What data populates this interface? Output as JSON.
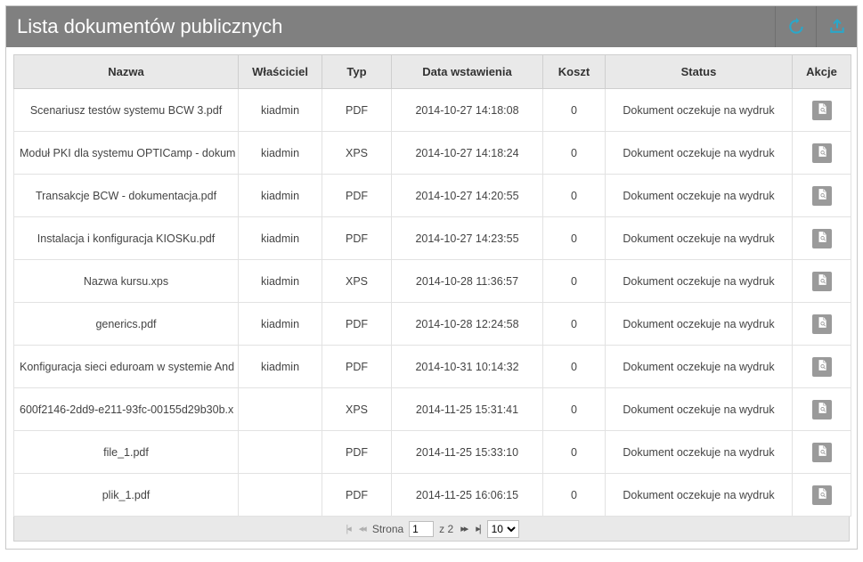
{
  "header": {
    "title": "Lista dokumentów publicznych"
  },
  "columns": {
    "name": "Nazwa",
    "owner": "Właściciel",
    "type": "Typ",
    "date": "Data wstawienia",
    "cost": "Koszt",
    "status": "Status",
    "actions": "Akcje"
  },
  "rows": [
    {
      "name": "Scenariusz testów systemu BCW 3.pdf",
      "owner": "kiadmin",
      "type": "PDF",
      "date": "2014-10-27 14:18:08",
      "cost": "0",
      "status": "Dokument oczekuje na wydruk"
    },
    {
      "name": "Moduł PKI dla systemu OPTICamp - dokum",
      "owner": "kiadmin",
      "type": "XPS",
      "date": "2014-10-27 14:18:24",
      "cost": "0",
      "status": "Dokument oczekuje na wydruk"
    },
    {
      "name": "Transakcje BCW - dokumentacja.pdf",
      "owner": "kiadmin",
      "type": "PDF",
      "date": "2014-10-27 14:20:55",
      "cost": "0",
      "status": "Dokument oczekuje na wydruk"
    },
    {
      "name": "Instalacja i konfiguracja KIOSKu.pdf",
      "owner": "kiadmin",
      "type": "PDF",
      "date": "2014-10-27 14:23:55",
      "cost": "0",
      "status": "Dokument oczekuje na wydruk"
    },
    {
      "name": "Nazwa kursu.xps",
      "owner": "kiadmin",
      "type": "XPS",
      "date": "2014-10-28 11:36:57",
      "cost": "0",
      "status": "Dokument oczekuje na wydruk"
    },
    {
      "name": "generics.pdf",
      "owner": "kiadmin",
      "type": "PDF",
      "date": "2014-10-28 12:24:58",
      "cost": "0",
      "status": "Dokument oczekuje na wydruk"
    },
    {
      "name": "Konfiguracja sieci eduroam w systemie And",
      "owner": "kiadmin",
      "type": "PDF",
      "date": "2014-10-31 10:14:32",
      "cost": "0",
      "status": "Dokument oczekuje na wydruk"
    },
    {
      "name": "600f2146-2dd9-e211-93fc-00155d29b30b.x",
      "owner": "",
      "type": "XPS",
      "date": "2014-11-25 15:31:41",
      "cost": "0",
      "status": "Dokument oczekuje na wydruk"
    },
    {
      "name": "file_1.pdf",
      "owner": "",
      "type": "PDF",
      "date": "2014-11-25 15:33:10",
      "cost": "0",
      "status": "Dokument oczekuje na wydruk"
    },
    {
      "name": "plik_1.pdf",
      "owner": "",
      "type": "PDF",
      "date": "2014-11-25 16:06:15",
      "cost": "0",
      "status": "Dokument oczekuje na wydruk"
    }
  ],
  "pager": {
    "page_label": "Strona",
    "page": "1",
    "of_label": "z 2",
    "page_size": "10"
  },
  "colors": {
    "header_bg": "#808080",
    "header_text": "#ffffff",
    "th_bg": "#e9e9e9",
    "border": "#cfcfcf",
    "icon_accent": "#2aa7c9"
  }
}
